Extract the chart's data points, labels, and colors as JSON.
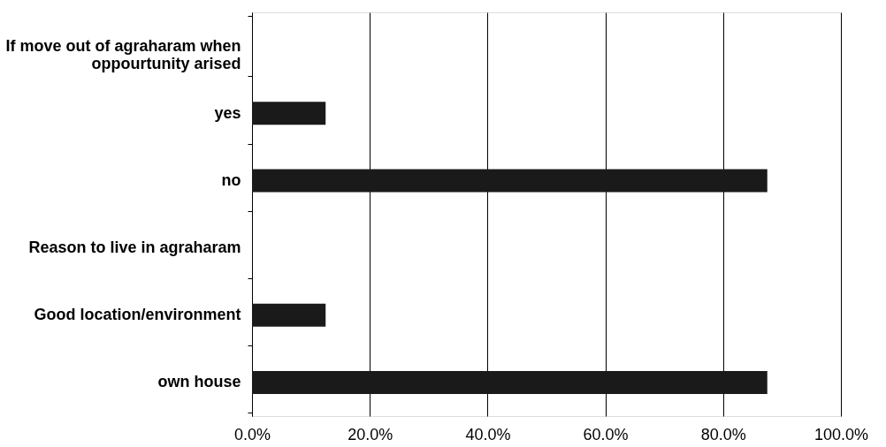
{
  "chart_data": {
    "type": "bar",
    "orientation": "horizontal",
    "categories": [
      "If move out of agraharam when oppourtunity arised",
      "yes",
      "no",
      "Reason to live in agraharam",
      "Good location/environment",
      "own house"
    ],
    "values": [
      null,
      12.5,
      87.5,
      null,
      12.5,
      87.5
    ],
    "color": "#1a1a1a",
    "xlim": [
      0,
      100
    ],
    "xticks": [
      {
        "value": 0,
        "label": "0.0%"
      },
      {
        "value": 20,
        "label": "20.0%"
      },
      {
        "value": 40,
        "label": "40.0%"
      },
      {
        "value": 60,
        "label": "60.0%"
      },
      {
        "value": 80,
        "label": "80.0%"
      },
      {
        "value": 100,
        "label": "100.0%"
      }
    ],
    "grid": "x"
  }
}
